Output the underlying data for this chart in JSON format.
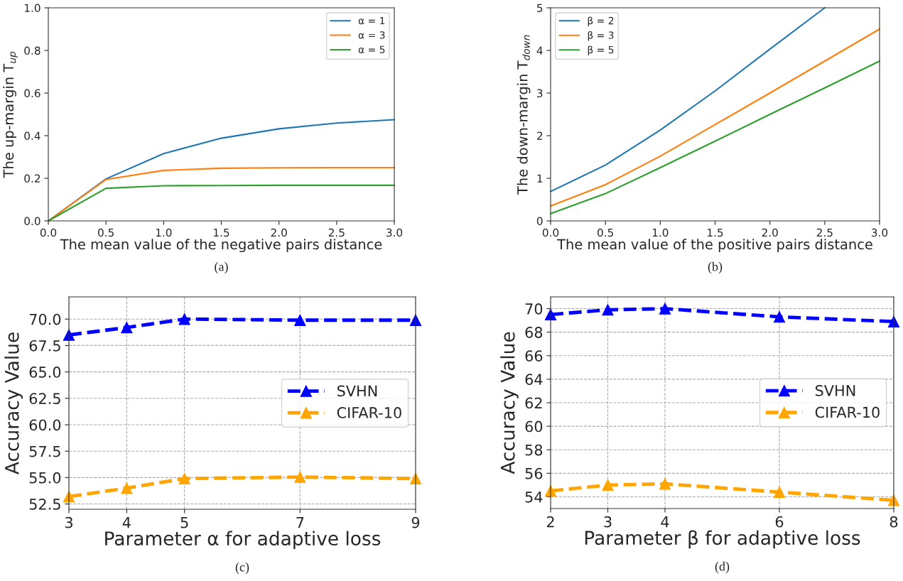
{
  "chart_data": [
    {
      "type": "line",
      "xlabel": "The mean value of the negative pairs distance",
      "ylabel": "The up-margin T$_{up}$",
      "annotations": [
        "(a)"
      ],
      "x": [
        0,
        0.5,
        1.0,
        1.5,
        2.0,
        2.5,
        3.0
      ],
      "xlim": [
        0,
        3
      ],
      "xticks": [
        {
          "value": 0,
          "label": "0.0"
        },
        0.5,
        {
          "value": 1,
          "label": "1.0"
        },
        1.5,
        {
          "value": 2,
          "label": "2.0"
        },
        2.5,
        {
          "value": 3,
          "label": "3.0"
        }
      ],
      "ylim": [
        0,
        1
      ],
      "yticks": [
        {
          "value": 0,
          "label": "0.0"
        },
        0.2,
        0.4,
        0.6,
        0.8,
        {
          "value": 1,
          "label": "1.0"
        }
      ],
      "grid": false,
      "legend": "top right",
      "marker": "none",
      "line_style": "solid",
      "series": [
        {
          "name": "α = 1",
          "color": "#1f77b4",
          "values": [
            0,
            0.197,
            0.316,
            0.388,
            0.432,
            0.459,
            0.475
          ]
        },
        {
          "name": "α = 3",
          "color": "#ff7f0e",
          "values": [
            0,
            0.194,
            0.237,
            0.247,
            0.249,
            0.25,
            0.25
          ]
        },
        {
          "name": "α = 5",
          "color": "#2ca02c",
          "values": [
            0,
            0.153,
            0.165,
            0.166,
            0.167,
            0.167,
            0.167
          ]
        }
      ]
    },
    {
      "type": "line",
      "xlabel": "The mean value of the positive pairs distance",
      "ylabel": "The down-margin T$_{down}$",
      "annotations": [
        "(b)"
      ],
      "x": [
        0,
        0.5,
        1.0,
        1.5,
        2.0,
        2.5,
        3.0
      ],
      "xlim": [
        0,
        3
      ],
      "xticks": [
        {
          "value": 0,
          "label": "0.0"
        },
        0.5,
        {
          "value": 1,
          "label": "1.0"
        },
        1.5,
        {
          "value": 2,
          "label": "2.0"
        },
        2.5,
        {
          "value": 3,
          "label": "3.0"
        }
      ],
      "ylim": [
        0,
        5
      ],
      "yticks": [
        0,
        1,
        2,
        3,
        4,
        5
      ],
      "grid": false,
      "legend": "top left",
      "marker": "none",
      "line_style": "solid",
      "series": [
        {
          "name": "β = 2",
          "color": "#1f77b4",
          "x": [
            0,
            0.5,
            1.0,
            1.5,
            2.0,
            2.5
          ],
          "values": [
            0.69,
            1.31,
            2.13,
            3.05,
            4.03,
            5.0
          ]
        },
        {
          "name": "β = 3",
          "color": "#ff7f0e",
          "values": [
            0.35,
            0.85,
            1.52,
            2.26,
            3.0,
            3.75,
            4.5
          ]
        },
        {
          "name": "β = 5",
          "color": "#2ca02c",
          "values": [
            0.17,
            0.64,
            1.25,
            1.87,
            2.5,
            3.12,
            3.75
          ]
        }
      ]
    },
    {
      "type": "line",
      "xlabel": "Parameter α for adaptive loss",
      "ylabel": "Accuracy Value",
      "annotations": [
        "(c)"
      ],
      "x": [
        3,
        4,
        5,
        7,
        9
      ],
      "xlim": [
        3,
        9
      ],
      "xticks": [
        3,
        4,
        5,
        7,
        9
      ],
      "ylim": [
        52.0,
        72.1
      ],
      "yticks": [
        {
          "value": 52.5,
          "label": "52.5"
        },
        {
          "value": 55,
          "label": "55.0"
        },
        {
          "value": 57.5,
          "label": "57.5"
        },
        {
          "value": 60,
          "label": "60.0"
        },
        {
          "value": 62.5,
          "label": "62.5"
        },
        {
          "value": 65,
          "label": "65.0"
        },
        {
          "value": 67.5,
          "label": "67.5"
        },
        {
          "value": 70,
          "label": "70.0"
        }
      ],
      "grid": true,
      "legend": "right",
      "marker": "triangle",
      "line_style": "dashed",
      "series": [
        {
          "name": "SVHN",
          "color": "#0000ff",
          "values": [
            68.5,
            69.2,
            70.0,
            69.9,
            69.9
          ]
        },
        {
          "name": "CIFAR-10",
          "color": "#ffa500",
          "values": [
            53.2,
            54.0,
            54.9,
            55.05,
            54.9
          ]
        }
      ]
    },
    {
      "type": "line",
      "xlabel": "Parameter β for adaptive loss",
      "ylabel": "Accuracy Value",
      "annotations": [
        "(d)"
      ],
      "x": [
        2,
        3,
        4,
        6,
        8
      ],
      "xlim": [
        2,
        8
      ],
      "xticks": [
        2,
        3,
        4,
        6,
        8
      ],
      "ylim": [
        53,
        71
      ],
      "yticks": [
        54,
        56,
        58,
        60,
        62,
        64,
        66,
        68,
        70
      ],
      "grid": true,
      "legend": "right",
      "marker": "triangle",
      "line_style": "dashed",
      "series": [
        {
          "name": "SVHN",
          "color": "#0000ff",
          "values": [
            69.5,
            69.9,
            70.0,
            69.3,
            68.9
          ]
        },
        {
          "name": "CIFAR-10",
          "color": "#ffa500",
          "values": [
            54.5,
            55.0,
            55.1,
            54.4,
            53.7
          ]
        }
      ]
    }
  ]
}
